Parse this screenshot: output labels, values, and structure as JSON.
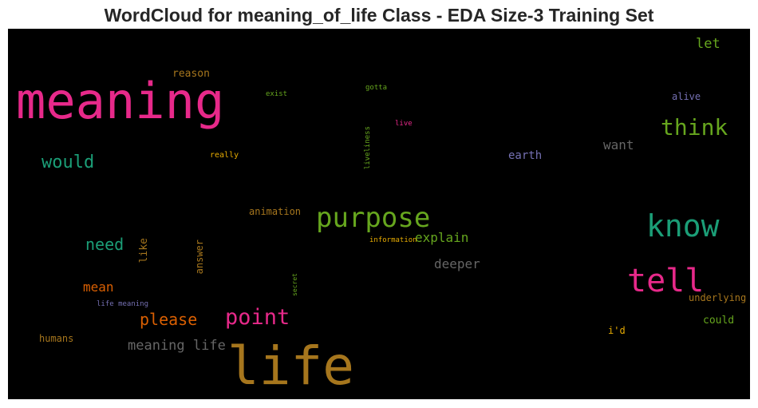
{
  "title": "WordCloud for meaning_of_life Class - EDA Size-3 Training Set",
  "chart_data": {
    "type": "wordcloud",
    "words": [
      {
        "text": "meaning",
        "color": "#e7298a"
      },
      {
        "text": "life",
        "color": "#a6761d"
      },
      {
        "text": "know",
        "color": "#1b9e77"
      },
      {
        "text": "tell",
        "color": "#e7298a"
      },
      {
        "text": "purpose",
        "color": "#66a61e"
      },
      {
        "text": "think",
        "color": "#66a61e"
      },
      {
        "text": "point",
        "color": "#e7298a"
      },
      {
        "text": "would",
        "color": "#1b9e77"
      },
      {
        "text": "need",
        "color": "#1b9e77"
      },
      {
        "text": "please",
        "color": "#d95f02"
      },
      {
        "text": "meaning life",
        "color": "#666666"
      },
      {
        "text": "explain",
        "color": "#66a61e"
      },
      {
        "text": "deeper",
        "color": "#666666"
      },
      {
        "text": "mean",
        "color": "#d95f02"
      },
      {
        "text": "let",
        "color": "#66a61e"
      },
      {
        "text": "want",
        "color": "#666666"
      },
      {
        "text": "earth",
        "color": "#7570b3"
      },
      {
        "text": "could",
        "color": "#66a61e"
      },
      {
        "text": "reason",
        "color": "#a6761d"
      },
      {
        "text": "animation",
        "color": "#a6761d"
      },
      {
        "text": "underlying",
        "color": "#a6761d"
      },
      {
        "text": "humans",
        "color": "#a6761d"
      },
      {
        "text": "alive",
        "color": "#7570b3"
      },
      {
        "text": "i'd",
        "color": "#e6ab02"
      },
      {
        "text": "like",
        "color": "#a6761d"
      },
      {
        "text": "answer",
        "color": "#a6761d"
      },
      {
        "text": "really",
        "color": "#e6ab02"
      },
      {
        "text": "exist",
        "color": "#66a61e"
      },
      {
        "text": "gotta",
        "color": "#66a61e"
      },
      {
        "text": "live",
        "color": "#e7298a"
      },
      {
        "text": "liveliness",
        "color": "#66a61e"
      },
      {
        "text": "information",
        "color": "#e6ab02"
      },
      {
        "text": "life meaning",
        "color": "#7570b3"
      },
      {
        "text": "secret",
        "color": "#66a61e"
      }
    ]
  }
}
